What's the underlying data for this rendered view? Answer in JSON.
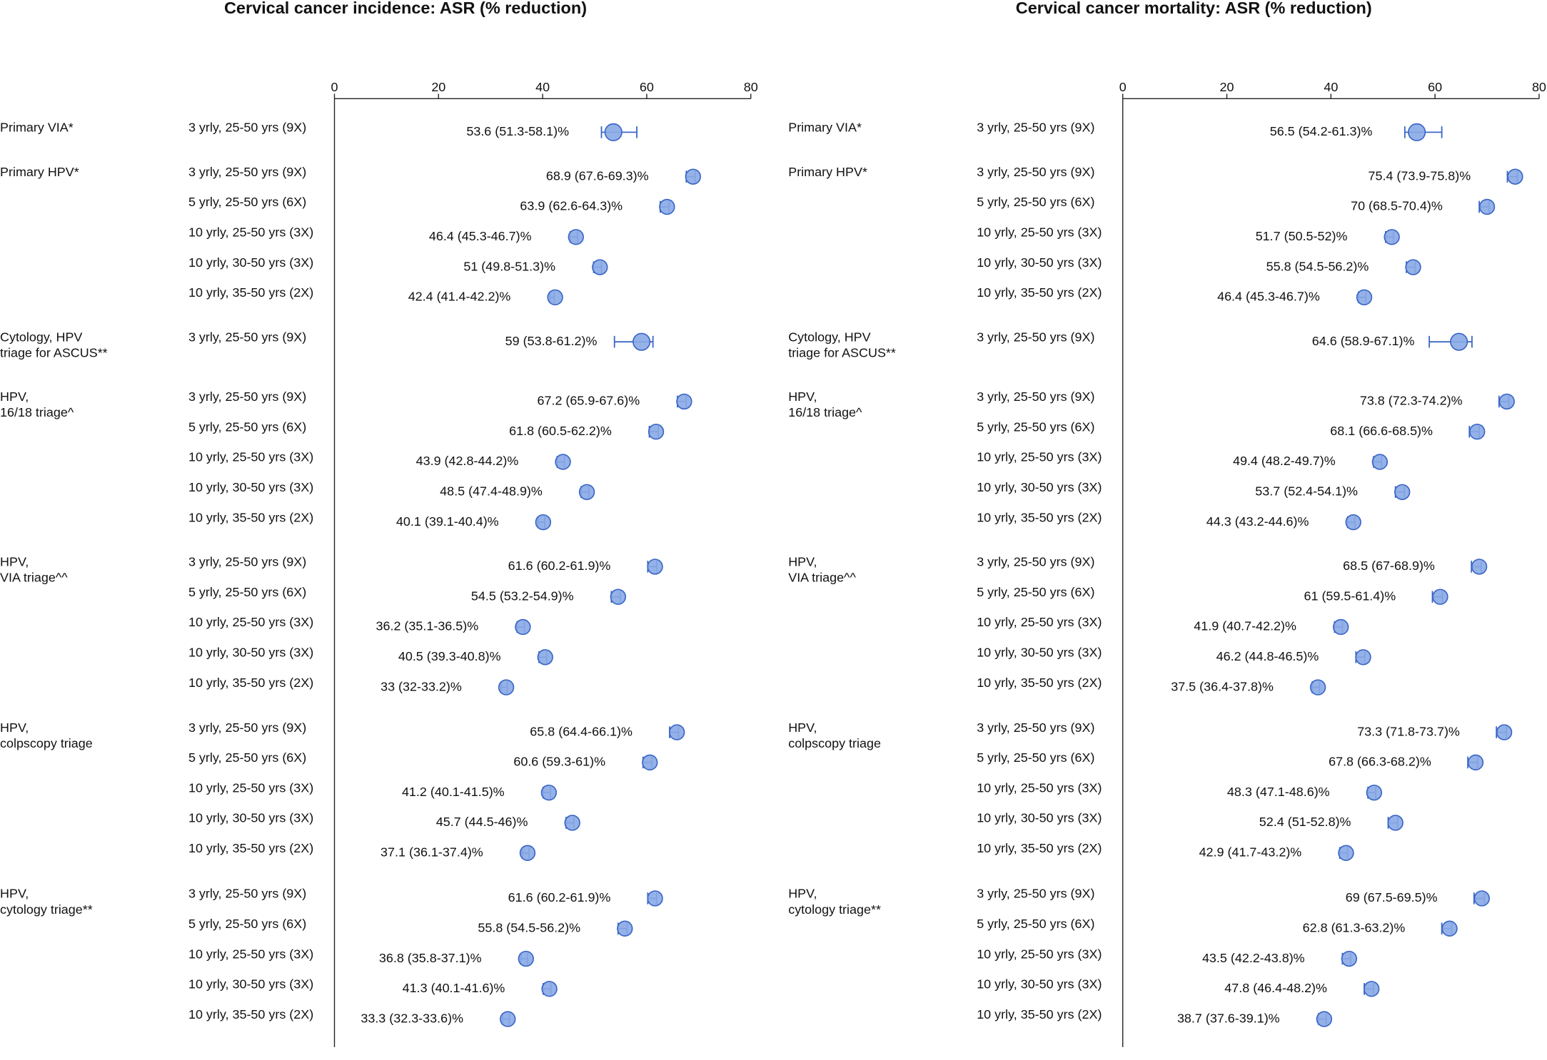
{
  "chart_data": [
    {
      "type": "forest",
      "title": "Cervical cancer incidence: ASR (% reduction)",
      "xlim": [
        0,
        80
      ],
      "xticks": [
        0,
        20,
        40,
        60,
        80
      ],
      "color": "#8aaae6",
      "edge_color": "#3b66c6",
      "groups": [
        {
          "label": [
            "Primary VIA*"
          ],
          "categories": [
            "3 yrly, 25-50 yrs (9X)"
          ],
          "values": [
            53.6
          ],
          "lower": [
            51.3
          ],
          "upper": [
            58.1
          ],
          "value_labels": [
            "53.6 (51.3-58.1)%"
          ]
        },
        {
          "label": [
            "Primary HPV*"
          ],
          "categories": [
            "3 yrly, 25-50 yrs (9X)",
            "5 yrly, 25-50 yrs (6X)",
            "10 yrly, 25-50 yrs (3X)",
            "10 yrly, 30-50 yrs (3X)",
            "10 yrly, 35-50 yrs (2X)"
          ],
          "values": [
            68.9,
            63.9,
            46.4,
            51,
            42.4
          ],
          "lower": [
            67.6,
            62.6,
            45.3,
            49.8,
            41.4
          ],
          "upper": [
            69.3,
            64.3,
            46.7,
            51.3,
            42.2
          ],
          "value_labels": [
            "68.9 (67.6-69.3)%",
            "63.9 (62.6-64.3)%",
            "46.4 (45.3-46.7)%",
            "51 (49.8-51.3)%",
            "42.4 (41.4-42.2)%"
          ]
        },
        {
          "label": [
            "Cytology, HPV",
            "triage for ASCUS**"
          ],
          "categories": [
            "3 yrly, 25-50 yrs (9X)"
          ],
          "values": [
            59
          ],
          "lower": [
            53.8
          ],
          "upper": [
            61.2
          ],
          "value_labels": [
            "59 (53.8-61.2)%"
          ]
        },
        {
          "label": [
            "HPV,",
            "16/18 triage^"
          ],
          "categories": [
            "3 yrly, 25-50 yrs (9X)",
            "5 yrly, 25-50 yrs (6X)",
            "10 yrly, 25-50 yrs (3X)",
            "10 yrly, 30-50 yrs (3X)",
            "10 yrly, 35-50 yrs (2X)"
          ],
          "values": [
            67.2,
            61.8,
            43.9,
            48.5,
            40.1
          ],
          "lower": [
            65.9,
            60.5,
            42.8,
            47.4,
            39.1
          ],
          "upper": [
            67.6,
            62.2,
            44.2,
            48.9,
            40.4
          ],
          "value_labels": [
            "67.2 (65.9-67.6)%",
            "61.8 (60.5-62.2)%",
            "43.9 (42.8-44.2)%",
            "48.5 (47.4-48.9)%",
            "40.1 (39.1-40.4)%"
          ]
        },
        {
          "label": [
            "HPV,",
            "VIA triage^^"
          ],
          "categories": [
            "3 yrly, 25-50 yrs (9X)",
            "5 yrly, 25-50 yrs (6X)",
            "10 yrly, 25-50 yrs (3X)",
            "10 yrly, 30-50 yrs (3X)",
            "10 yrly, 35-50 yrs (2X)"
          ],
          "values": [
            61.6,
            54.5,
            36.2,
            40.5,
            33
          ],
          "lower": [
            60.2,
            53.2,
            35.1,
            39.3,
            32
          ],
          "upper": [
            61.9,
            54.9,
            36.5,
            40.8,
            33.2
          ],
          "value_labels": [
            "61.6 (60.2-61.9)%",
            "54.5 (53.2-54.9)%",
            "36.2 (35.1-36.5)%",
            "40.5 (39.3-40.8)%",
            "33 (32-33.2)%"
          ]
        },
        {
          "label": [
            "HPV,",
            "colpscopy triage"
          ],
          "categories": [
            "3 yrly, 25-50 yrs (9X)",
            "5 yrly, 25-50 yrs (6X)",
            "10 yrly, 25-50 yrs (3X)",
            "10 yrly, 30-50 yrs (3X)",
            "10 yrly, 35-50 yrs (2X)"
          ],
          "values": [
            65.8,
            60.6,
            41.2,
            45.7,
            37.1
          ],
          "lower": [
            64.4,
            59.3,
            40.1,
            44.5,
            36.1
          ],
          "upper": [
            66.1,
            61,
            41.5,
            46,
            37.4
          ],
          "value_labels": [
            "65.8 (64.4-66.1)%",
            "60.6 (59.3-61)%",
            "41.2 (40.1-41.5)%",
            "45.7 (44.5-46)%",
            "37.1 (36.1-37.4)%"
          ]
        },
        {
          "label": [
            "HPV,",
            "cytology triage**"
          ],
          "categories": [
            "3 yrly, 25-50 yrs (9X)",
            "5 yrly, 25-50 yrs (6X)",
            "10 yrly, 25-50 yrs (3X)",
            "10 yrly, 30-50 yrs (3X)",
            "10 yrly, 35-50 yrs (2X)"
          ],
          "values": [
            61.6,
            55.8,
            36.8,
            41.3,
            33.3
          ],
          "lower": [
            60.2,
            54.5,
            35.8,
            40.1,
            32.3
          ],
          "upper": [
            61.9,
            56.2,
            37.1,
            41.6,
            33.6
          ],
          "value_labels": [
            "61.6 (60.2-61.9)%",
            "55.8 (54.5-56.2)%",
            "36.8 (35.8-37.1)%",
            "41.3 (40.1-41.6)%",
            "33.3 (32.3-33.6)%"
          ]
        }
      ]
    },
    {
      "type": "forest",
      "title": "Cervical cancer mortality: ASR (% reduction)",
      "xlim": [
        0,
        80
      ],
      "xticks": [
        0,
        20,
        40,
        60,
        80
      ],
      "color": "#8aaae6",
      "edge_color": "#3b66c6",
      "groups": [
        {
          "label": [
            "Primary VIA*"
          ],
          "categories": [
            "3 yrly, 25-50 yrs (9X)"
          ],
          "values": [
            56.5
          ],
          "lower": [
            54.2
          ],
          "upper": [
            61.3
          ],
          "value_labels": [
            "56.5 (54.2-61.3)%"
          ]
        },
        {
          "label": [
            "Primary HPV*"
          ],
          "categories": [
            "3 yrly, 25-50 yrs (9X)",
            "5 yrly, 25-50 yrs (6X)",
            "10 yrly, 25-50 yrs (3X)",
            "10 yrly, 30-50 yrs (3X)",
            "10 yrly, 35-50 yrs (2X)"
          ],
          "values": [
            75.4,
            70,
            51.7,
            55.8,
            46.4
          ],
          "lower": [
            73.9,
            68.5,
            50.5,
            54.5,
            45.3
          ],
          "upper": [
            75.8,
            70.4,
            52,
            56.2,
            46.7
          ],
          "value_labels": [
            "75.4 (73.9-75.8)%",
            "70 (68.5-70.4)%",
            "51.7 (50.5-52)%",
            "55.8 (54.5-56.2)%",
            "46.4 (45.3-46.7)%"
          ]
        },
        {
          "label": [
            "Cytology, HPV",
            "triage for ASCUS**"
          ],
          "categories": [
            "3 yrly, 25-50 yrs (9X)"
          ],
          "values": [
            64.6
          ],
          "lower": [
            58.9
          ],
          "upper": [
            67.1
          ],
          "value_labels": [
            "64.6 (58.9-67.1)%"
          ]
        },
        {
          "label": [
            "HPV,",
            "16/18 triage^"
          ],
          "categories": [
            "3 yrly, 25-50 yrs (9X)",
            "5 yrly, 25-50 yrs (6X)",
            "10 yrly, 25-50 yrs (3X)",
            "10 yrly, 30-50 yrs (3X)",
            "10 yrly, 35-50 yrs (2X)"
          ],
          "values": [
            73.8,
            68.1,
            49.4,
            53.7,
            44.3
          ],
          "lower": [
            72.3,
            66.6,
            48.2,
            52.4,
            43.2
          ],
          "upper": [
            74.2,
            68.5,
            49.7,
            54.1,
            44.6
          ],
          "value_labels": [
            "73.8 (72.3-74.2)%",
            "68.1 (66.6-68.5)%",
            "49.4 (48.2-49.7)%",
            "53.7 (52.4-54.1)%",
            "44.3 (43.2-44.6)%"
          ]
        },
        {
          "label": [
            "HPV,",
            "VIA triage^^"
          ],
          "categories": [
            "3 yrly, 25-50 yrs (9X)",
            "5 yrly, 25-50 yrs (6X)",
            "10 yrly, 25-50 yrs (3X)",
            "10 yrly, 30-50 yrs (3X)",
            "10 yrly, 35-50 yrs (2X)"
          ],
          "values": [
            68.5,
            61,
            41.9,
            46.2,
            37.5
          ],
          "lower": [
            67,
            59.5,
            40.7,
            44.8,
            36.4
          ],
          "upper": [
            68.9,
            61.4,
            42.2,
            46.5,
            37.8
          ],
          "value_labels": [
            "68.5 (67-68.9)%",
            "61 (59.5-61.4)%",
            "41.9 (40.7-42.2)%",
            "46.2 (44.8-46.5)%",
            "37.5 (36.4-37.8)%"
          ]
        },
        {
          "label": [
            "HPV,",
            "colpscopy triage"
          ],
          "categories": [
            "3 yrly, 25-50 yrs (9X)",
            "5 yrly, 25-50 yrs (6X)",
            "10 yrly, 25-50 yrs (3X)",
            "10 yrly, 30-50 yrs (3X)",
            "10 yrly, 35-50 yrs (2X)"
          ],
          "values": [
            73.3,
            67.8,
            48.3,
            52.4,
            42.9
          ],
          "lower": [
            71.8,
            66.3,
            47.1,
            51,
            41.7
          ],
          "upper": [
            73.7,
            68.2,
            48.6,
            52.8,
            43.2
          ],
          "value_labels": [
            "73.3 (71.8-73.7)%",
            "67.8 (66.3-68.2)%",
            "48.3 (47.1-48.6)%",
            "52.4 (51-52.8)%",
            "42.9 (41.7-43.2)%"
          ]
        },
        {
          "label": [
            "HPV,",
            "cytology triage**"
          ],
          "categories": [
            "3 yrly, 25-50 yrs (9X)",
            "5 yrly, 25-50 yrs (6X)",
            "10 yrly, 25-50 yrs (3X)",
            "10 yrly, 30-50 yrs (3X)",
            "10 yrly, 35-50 yrs (2X)"
          ],
          "values": [
            69,
            62.8,
            43.5,
            47.8,
            38.7
          ],
          "lower": [
            67.5,
            61.3,
            42.2,
            46.4,
            37.6
          ],
          "upper": [
            69.5,
            63.2,
            43.8,
            48.2,
            39.1
          ],
          "value_labels": [
            "69 (67.5-69.5)%",
            "62.8 (61.3-63.2)%",
            "43.5 (42.2-43.8)%",
            "47.8 (46.4-48.2)%",
            "38.7 (37.6-39.1)%"
          ]
        }
      ]
    }
  ]
}
